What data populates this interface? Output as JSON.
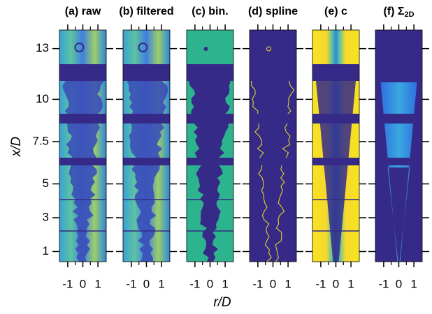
{
  "figure": {
    "panels": [
      {
        "title": "(a) raw"
      },
      {
        "title": "(b) filtered"
      },
      {
        "title": "(c) bin."
      },
      {
        "title": "(d) spline"
      },
      {
        "title": "(e) c"
      },
      {
        "title": "(f) Σ",
        "title_sub": "2D"
      }
    ],
    "ylabel": "x/D",
    "xlabel": "r/D",
    "yticks": [
      1,
      3,
      5,
      7.5,
      10,
      13
    ],
    "ylim": [
      0.4,
      14.1
    ],
    "xticks": [
      -1,
      0,
      1
    ],
    "xminor": [
      -0.5,
      0.5
    ],
    "xlim": [
      -1.55,
      1.55
    ]
  }
}
